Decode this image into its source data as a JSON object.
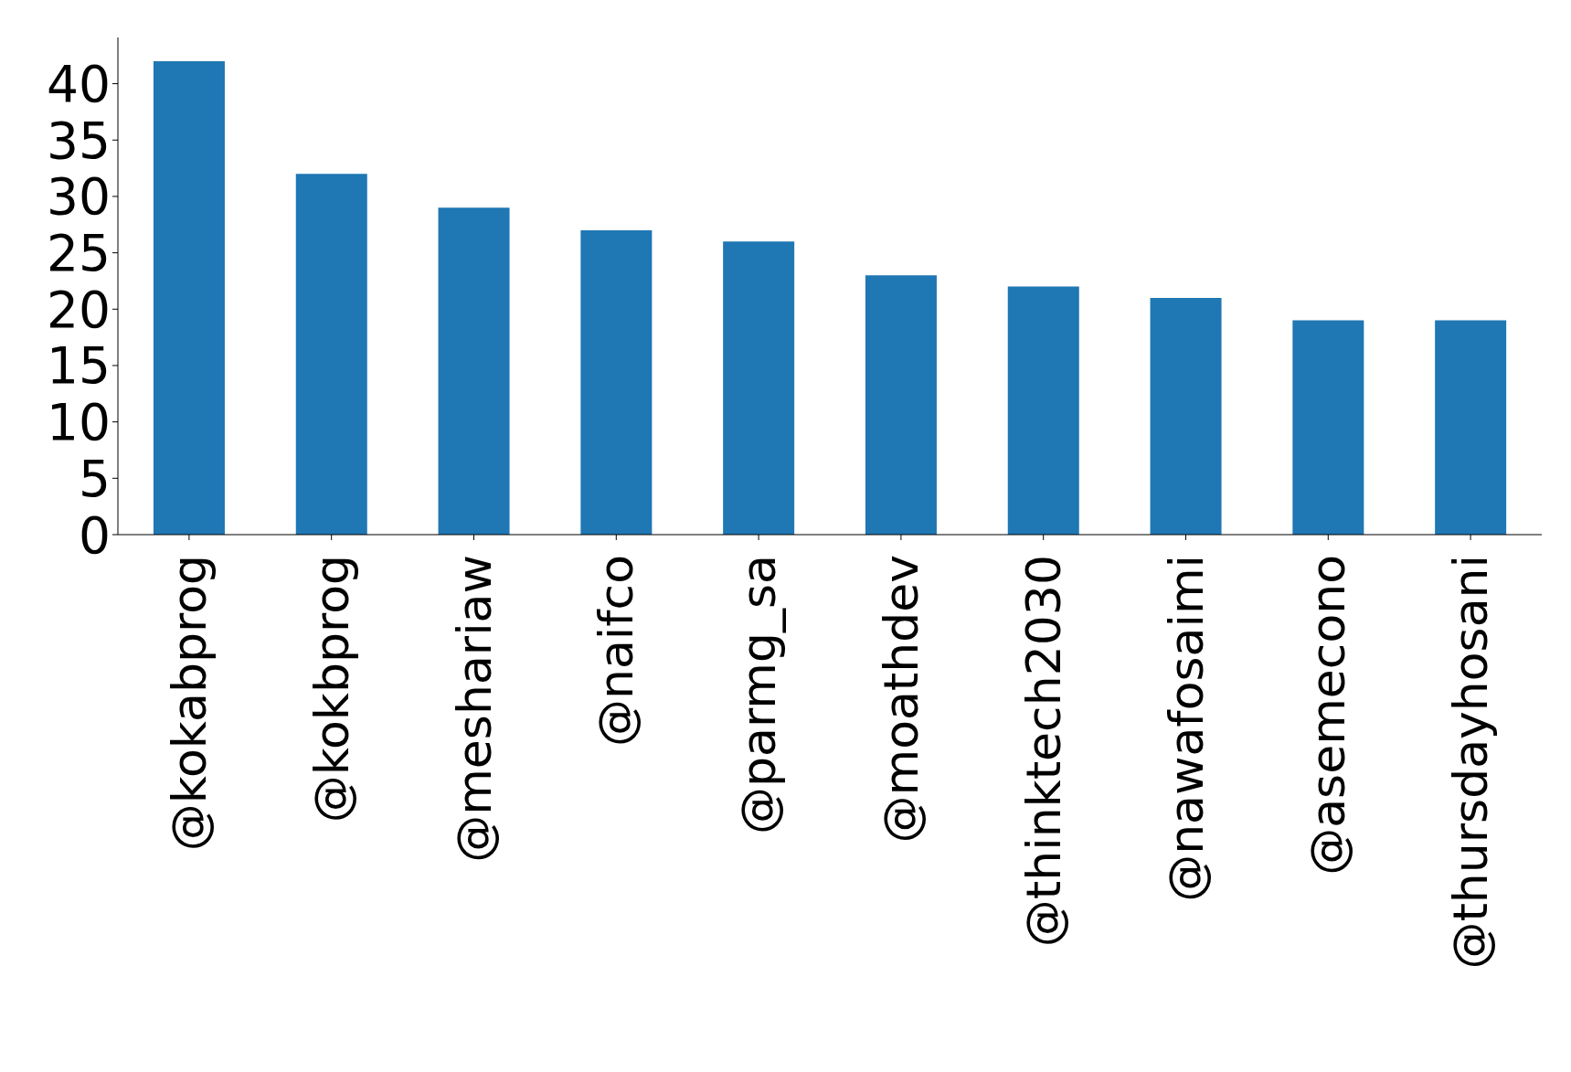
{
  "chart_data": {
    "type": "bar",
    "categories": [
      "@kokabprog",
      "@kokbprog",
      "@meshariaw",
      "@naifco",
      "@parmg_sa",
      "@moathdev",
      "@thinktech2030",
      "@nawafosaimi",
      "@asemecono",
      "@thursdayhosani"
    ],
    "values": [
      42,
      32,
      29,
      27,
      26,
      23,
      22,
      21,
      19,
      19
    ],
    "color": "#1f77b4",
    "ylim": [
      0,
      44.1
    ],
    "yticks": [
      0,
      5,
      10,
      15,
      20,
      25,
      30,
      35,
      40
    ],
    "grid": false,
    "legend": false
  }
}
